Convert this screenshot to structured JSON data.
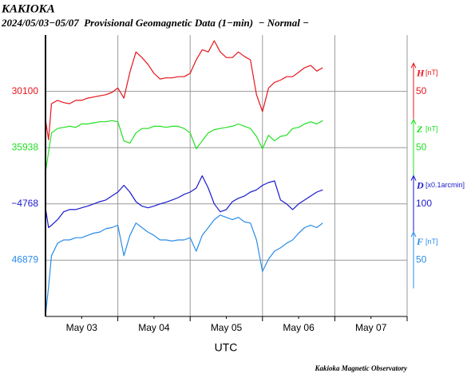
{
  "chart_data": {
    "type": "line",
    "title": "KAKIOKA",
    "subtitle": "2024/05/03−05/07  Provisional Geomagnetic Data (1−min)  − Normal −",
    "xlabel": "UTC",
    "note": "Kakioka Magnetic Observatory",
    "grid": true,
    "xlim": [
      0,
      120
    ],
    "xticks": [
      {
        "value": 12,
        "label": "May 03"
      },
      {
        "value": 36,
        "label": "May 04"
      },
      {
        "value": 60,
        "label": "May 05"
      },
      {
        "value": 84,
        "label": "May 06"
      },
      {
        "value": 108,
        "label": "May 07"
      }
    ],
    "xgrid": [
      24,
      48,
      72,
      96,
      120
    ],
    "x": [
      0,
      1,
      2,
      4,
      6,
      8,
      10,
      12,
      14,
      16,
      18,
      20,
      22,
      24,
      26,
      28,
      30,
      32,
      34,
      36,
      38,
      40,
      42,
      44,
      46,
      48,
      50,
      52,
      54,
      56,
      58,
      60,
      62,
      64,
      66,
      68,
      70,
      72,
      74,
      76,
      78,
      80,
      82,
      84,
      86,
      88,
      90,
      92
    ],
    "series": [
      {
        "name": "H",
        "unit": "[nT]",
        "color": "#e8141c",
        "yticks": [
          30100
        ],
        "scale": 50,
        "ylim": [
          29900,
          30150
        ],
        "values": [
          30075,
          30057,
          30089,
          30092,
          30090,
          30089,
          30092,
          30092,
          30094,
          30095,
          30096,
          30097,
          30099,
          30103,
          30094,
          30117,
          30135,
          30130,
          30124,
          30116,
          30111,
          30112,
          30112,
          30113,
          30113,
          30116,
          30128,
          30137,
          30135,
          30145,
          30135,
          30130,
          30130,
          30135,
          30131,
          30128,
          30097,
          30082,
          30103,
          30108,
          30110,
          30113,
          30113,
          30117,
          30121,
          30123,
          30118,
          30121
        ]
      },
      {
        "name": "Z",
        "unit": "[nT]",
        "color": "#22e022",
        "yticks": [
          35938
        ],
        "scale": 50,
        "ylim": [
          35788,
          36038
        ],
        "values": [
          35916,
          35934,
          35951,
          35955,
          35956,
          35957,
          35956,
          35959,
          35959,
          35960,
          35961,
          35961,
          35962,
          35961,
          35944,
          35942,
          35951,
          35955,
          35955,
          35957,
          35957,
          35956,
          35957,
          35957,
          35955,
          35951,
          35937,
          35944,
          35951,
          35954,
          35955,
          35956,
          35957,
          35959,
          35957,
          35955,
          35948,
          35937,
          35949,
          35944,
          35948,
          35949,
          35955,
          35956,
          35959,
          35961,
          35959,
          35962
        ]
      },
      {
        "name": "D",
        "unit": "[x0.1arcmin]",
        "color": "#1a1acc",
        "yticks": [
          {
            "value": -4768,
            "label": "−4768"
          }
        ],
        "scale": 100,
        "ylim": [
          -4968,
          -4468
        ],
        "values": [
          -4775,
          -4810,
          -4806,
          -4796,
          -4782,
          -4778,
          -4778,
          -4775,
          -4772,
          -4768,
          -4764,
          -4761,
          -4754,
          -4747,
          -4735,
          -4747,
          -4764,
          -4772,
          -4775,
          -4772,
          -4768,
          -4765,
          -4761,
          -4757,
          -4751,
          -4747,
          -4740,
          -4718,
          -4740,
          -4768,
          -4782,
          -4778,
          -4764,
          -4758,
          -4754,
          -4747,
          -4743,
          -4735,
          -4730,
          -4727,
          -4761,
          -4768,
          -4778,
          -4768,
          -4761,
          -4754,
          -4747,
          -4743
        ]
      },
      {
        "name": "F",
        "unit": "[nT]",
        "color": "#2a8ce8",
        "yticks": [
          46879
        ],
        "scale": 50,
        "ylim": [
          46829,
          47079
        ],
        "values": [
          46830,
          46855,
          46883,
          46894,
          46897,
          46897,
          46899,
          46899,
          46901,
          46903,
          46904,
          46907,
          46908,
          46910,
          46883,
          46901,
          46912,
          46908,
          46904,
          46901,
          46897,
          46897,
          46896,
          46897,
          46897,
          46899,
          46887,
          46901,
          46908,
          46915,
          46919,
          46917,
          46915,
          46917,
          46913,
          46912,
          46897,
          46869,
          46880,
          46887,
          46890,
          46894,
          46897,
          46903,
          46908,
          46910,
          46908,
          46912
        ]
      }
    ]
  }
}
